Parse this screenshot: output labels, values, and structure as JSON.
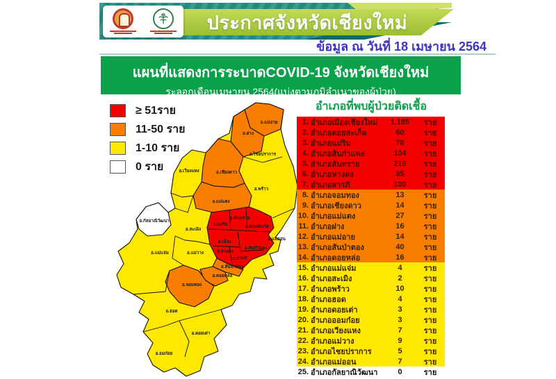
{
  "banner": {
    "title": "ประกาศจังหวัดเชียงใหม่",
    "logos": [
      "chiangmai-provincial-seal",
      "ministry-of-public-health"
    ]
  },
  "date_line": "ข้อมูล ณ วันที่ 18 เมษายน 2564",
  "map_title": {
    "line1": "แผนที่แสดงการระบาดCOVID-19 จังหวัดเชียงใหม่",
    "line2": "ระลอกเดือนเมษายน 2564(แบ่งตามภูมิลำเนาของผู้ป่วย)"
  },
  "legend": {
    "items": [
      {
        "label": "≥ 51ราย",
        "color": "#f40000",
        "level": "red"
      },
      {
        "label": "11-50 ราย",
        "color": "#f87d00",
        "level": "orange"
      },
      {
        "label": "1-10 ราย",
        "color": "#ffe800",
        "level": "yellow"
      },
      {
        "label": "0 ราย",
        "color": "#ffffff",
        "level": "white"
      }
    ]
  },
  "map": {
    "districts": [
      {
        "label": "อ.แม่อาย",
        "level": "orange"
      },
      {
        "label": "อ.ฝาง",
        "level": "orange"
      },
      {
        "label": "อ.ไชยปราการ",
        "level": "yellow"
      },
      {
        "label": "อ.เวียงแหง",
        "level": "yellow"
      },
      {
        "label": "อ.เชียงดาว",
        "level": "orange"
      },
      {
        "label": "อ.พร้าว",
        "level": "yellow"
      },
      {
        "label": "อ.แม่แตง",
        "level": "orange"
      },
      {
        "label": "อ.กัลยาณิวัฒนา",
        "level": "white"
      },
      {
        "label": "อ.สะเมิง",
        "level": "yellow"
      },
      {
        "label": "อ.แม่ริม",
        "level": "red"
      },
      {
        "label": "อ.สันทราย",
        "level": "red"
      },
      {
        "label": "อ.ดอยสะเก็ด",
        "level": "red"
      },
      {
        "label": "อ.แม่ออน",
        "level": "yellow"
      },
      {
        "label": "อ.เมือง",
        "level": "red"
      },
      {
        "label": "อ.สันกำแพง",
        "level": "red"
      },
      {
        "label": "อ.หางดง",
        "level": "red"
      },
      {
        "label": "อ.สารภี",
        "level": "red"
      },
      {
        "label": "อ.สันป่าตอง",
        "level": "orange"
      },
      {
        "label": "อ.ดอยหล่อ",
        "level": "orange"
      },
      {
        "label": "อ.จอมทอง",
        "level": "orange"
      },
      {
        "label": "อ.แม่แจ่ม",
        "level": "yellow"
      },
      {
        "label": "อ.แม่วาง",
        "level": "yellow"
      },
      {
        "label": "อ.ฮอด",
        "level": "yellow"
      },
      {
        "label": "อ.ดอยเต่า",
        "level": "yellow"
      },
      {
        "label": "อ.อมก๋อย",
        "level": "yellow"
      }
    ]
  },
  "table": {
    "title": "อำเภอที่พบผู้ป่วยติดเชื้อ",
    "unit": "ราย",
    "rows": [
      {
        "no": "1.",
        "district": "อำเภอเมืองเชียงใหม่",
        "count": "1,185",
        "level": "red"
      },
      {
        "no": "2.",
        "district": "อำเภอดอยสะเก็ด",
        "count": "60",
        "level": "red"
      },
      {
        "no": "3.",
        "district": "อำเภอแม่ริม",
        "count": "78",
        "level": "red"
      },
      {
        "no": "4.",
        "district": "อำเภอสันกำแพง",
        "count": "104",
        "level": "red"
      },
      {
        "no": "5.",
        "district": "อำเภอสันทราย",
        "count": "216",
        "level": "red"
      },
      {
        "no": "6.",
        "district": "อำเภอหางดง",
        "count": "85",
        "level": "red"
      },
      {
        "no": "7.",
        "district": "อำเภอสารภี",
        "count": "100",
        "level": "red"
      },
      {
        "no": "8.",
        "district": "อำเภอจอมทอง",
        "count": "13",
        "level": "orange"
      },
      {
        "no": "9.",
        "district": "อำเภอเชียงดาว",
        "count": "14",
        "level": "orange"
      },
      {
        "no": "10.",
        "district": "อำเภอแม่แตง",
        "count": "27",
        "level": "orange"
      },
      {
        "no": "11.",
        "district": "อำเภอฝาง",
        "count": "16",
        "level": "orange"
      },
      {
        "no": "12.",
        "district": "อำเภอแม่อาย",
        "count": "14",
        "level": "orange"
      },
      {
        "no": "13.",
        "district": "อำเภอสันป่าตอง",
        "count": "40",
        "level": "orange"
      },
      {
        "no": "14.",
        "district": "อำเภอดอยหล่อ",
        "count": "16",
        "level": "orange"
      },
      {
        "no": "15.",
        "district": "อำเภอแม่แจ่ม",
        "count": "4",
        "level": "yellow"
      },
      {
        "no": "16.",
        "district": "อำเภอสะเมิง",
        "count": "2",
        "level": "yellow"
      },
      {
        "no": "17.",
        "district": "อำเภอพร้าว",
        "count": "10",
        "level": "yellow"
      },
      {
        "no": "18.",
        "district": "อำเภอฮอด",
        "count": "4",
        "level": "yellow"
      },
      {
        "no": "19.",
        "district": "อำเภอดอยเต่า",
        "count": "3",
        "level": "yellow"
      },
      {
        "no": "20.",
        "district": "อำเภอออมก๋อย",
        "count": "3",
        "level": "yellow"
      },
      {
        "no": "21.",
        "district": "อำเภอเวียงแหง",
        "count": "7",
        "level": "yellow"
      },
      {
        "no": "22.",
        "district": "อำเภอแม่วาง",
        "count": "9",
        "level": "yellow"
      },
      {
        "no": "23.",
        "district": "อำเภอไชยปราการ",
        "count": "5",
        "level": "yellow"
      },
      {
        "no": "24.",
        "district": "อำเภอแม่ออน",
        "count": "7",
        "level": "yellow"
      },
      {
        "no": "25.",
        "district": "อำเภอกัลยาณิวัฒนา",
        "count": "0",
        "level": "white"
      }
    ]
  },
  "colors": {
    "red": "#f40000",
    "orange": "#f87d00",
    "yellow": "#ffe800",
    "green": "#0aa14b",
    "teal": "#1f8c7f",
    "lime": "#a9c43c",
    "date_blue": "#3d33cb"
  }
}
